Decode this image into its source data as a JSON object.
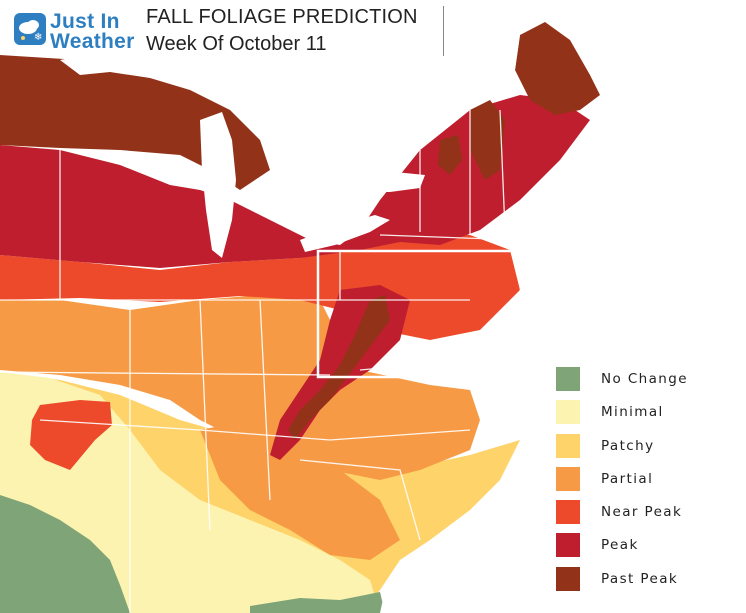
{
  "header": {
    "logo_line1": "Just In",
    "logo_line2": "Weather",
    "title": "FALL FOLIAGE PREDICTION",
    "subtitle": "Week Of October 11"
  },
  "logo_icon": "weather-cloud-snow-icon",
  "highlight_box": "white-rectangle-around-mid-atlantic",
  "legend": [
    {
      "label": "No Change",
      "color": "#7ea477"
    },
    {
      "label": "Minimal",
      "color": "#fdf3b0"
    },
    {
      "label": "Patchy",
      "color": "#fdd36a"
    },
    {
      "label": "Partial",
      "color": "#f69a45"
    },
    {
      "label": "Near Peak",
      "color": "#ec4a2a"
    },
    {
      "label": "Peak",
      "color": "#be1e2d"
    },
    {
      "label": "Past Peak",
      "color": "#923319"
    }
  ]
}
